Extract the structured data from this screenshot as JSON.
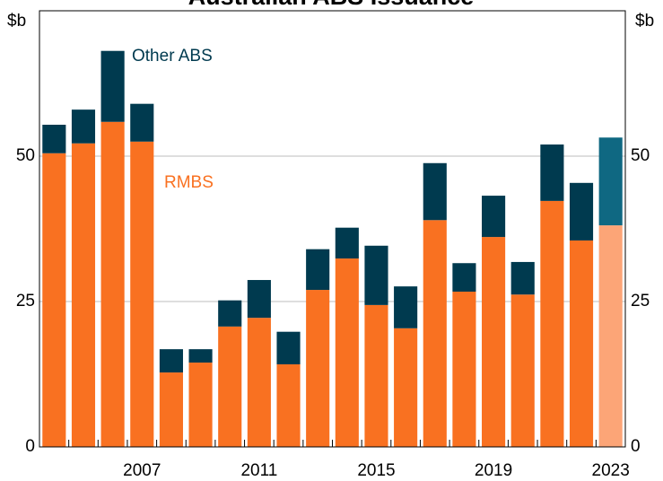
{
  "chart_data": {
    "type": "stacked_bar",
    "title": "Australian ABS Issuance",
    "ylabel": "$b",
    "y2label": "$b",
    "categories": [
      null,
      null,
      null,
      "2007",
      null,
      null,
      null,
      "2011",
      null,
      null,
      null,
      "2015",
      null,
      null,
      null,
      "2019",
      null,
      null,
      null,
      "2023"
    ],
    "series": [
      {
        "name": "RMBS",
        "color": "#f97121",
        "last_color": "#fca577",
        "values": [
          50.5,
          52.2,
          55.9,
          52.5,
          12.8,
          14.5,
          20.7,
          22.2,
          14.2,
          27.0,
          32.4,
          24.4,
          20.4,
          39.0,
          26.7,
          36.1,
          26.2,
          42.3,
          35.5,
          38.1
        ]
      },
      {
        "name": "Other ABS",
        "color": "#003a4f",
        "last_color": "#0f6882",
        "values": [
          4.9,
          5.8,
          12.2,
          6.5,
          4.0,
          2.3,
          4.5,
          6.5,
          5.6,
          7.0,
          5.3,
          10.2,
          7.2,
          9.8,
          4.9,
          7.1,
          5.6,
          9.7,
          9.9,
          15.1
        ]
      }
    ],
    "ylim": [
      0,
      75
    ],
    "yticks": [
      0,
      25,
      50
    ],
    "y2lim": [
      0,
      75
    ],
    "y2ticks": [
      0,
      25,
      50
    ],
    "grid": true
  }
}
